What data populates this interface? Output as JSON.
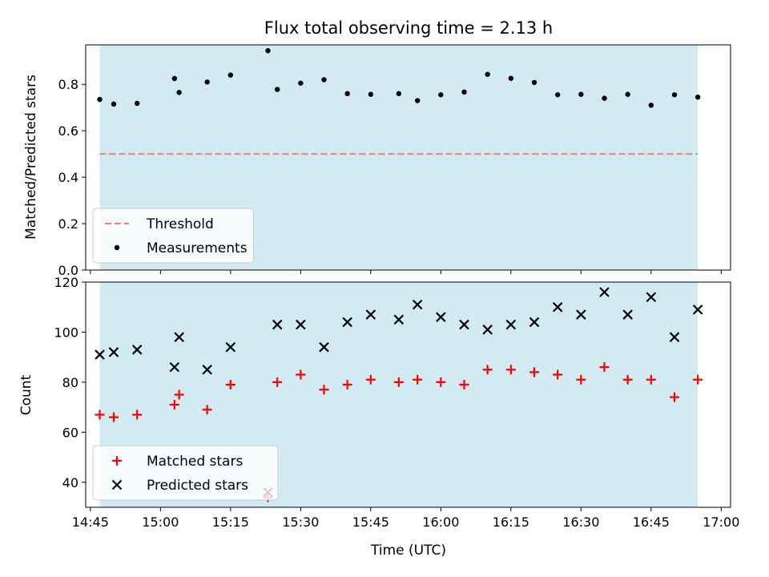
{
  "chart_data": [
    {
      "type": "scatter",
      "title": "Flux total observing time = 2.13 h",
      "xlabel": "",
      "ylabel": "Matched/Predicted stars",
      "ylim": [
        0,
        0.97
      ],
      "yticks": [
        "0.0",
        "0.2",
        "0.4",
        "0.6",
        "0.8"
      ],
      "ytick_values": [
        0,
        0.2,
        0.4,
        0.6,
        0.8
      ],
      "x_range": [
        "14:44",
        "17:02"
      ],
      "shaded_span": [
        "14:47",
        "16:55"
      ],
      "shade_color": "#add8e6",
      "threshold": {
        "name": "Threshold",
        "value": 0.5,
        "from": "14:47",
        "to": "16:55",
        "color": "#f08080"
      },
      "legend_position": "lower-left",
      "series": [
        {
          "name": "Measurements",
          "color": "#000000",
          "x": [
            "14:47",
            "14:50",
            "14:55",
            "15:03",
            "15:04",
            "15:10",
            "15:15",
            "15:23",
            "15:25",
            "15:30",
            "15:35",
            "15:40",
            "15:45",
            "15:51",
            "15:55",
            "16:00",
            "16:05",
            "16:10",
            "16:15",
            "16:20",
            "16:25",
            "16:30",
            "16:35",
            "16:40",
            "16:45",
            "16:50",
            "16:55"
          ],
          "y": [
            0.735,
            0.715,
            0.718,
            0.825,
            0.765,
            0.81,
            0.84,
            0.945,
            0.778,
            0.805,
            0.82,
            0.76,
            0.757,
            0.76,
            0.73,
            0.755,
            0.767,
            0.843,
            0.826,
            0.808,
            0.755,
            0.757,
            0.74,
            0.757,
            0.71,
            0.755,
            0.745
          ]
        }
      ]
    },
    {
      "type": "scatter",
      "title": "",
      "xlabel": "Time (UTC)",
      "ylabel": "Count",
      "ylim": [
        30,
        120
      ],
      "yticks": [
        "40",
        "60",
        "80",
        "100",
        "120"
      ],
      "ytick_values": [
        40,
        60,
        80,
        100,
        120
      ],
      "xticks": [
        "14:45",
        "15:00",
        "15:15",
        "15:30",
        "15:45",
        "16:00",
        "16:15",
        "16:30",
        "16:45",
        "17:00"
      ],
      "x_range": [
        "14:44",
        "17:02"
      ],
      "shaded_span": [
        "14:47",
        "16:55"
      ],
      "shade_color": "#add8e6",
      "legend_position": "lower-left",
      "series": [
        {
          "name": "Matched stars",
          "marker": "plus",
          "color": "#ff0000",
          "x": [
            "14:47",
            "14:50",
            "14:55",
            "15:03",
            "15:04",
            "15:10",
            "15:15",
            "15:23",
            "15:25",
            "15:30",
            "15:35",
            "15:40",
            "15:45",
            "15:51",
            "15:55",
            "16:00",
            "16:05",
            "16:10",
            "16:15",
            "16:20",
            "16:25",
            "16:30",
            "16:35",
            "16:40",
            "16:45",
            "16:50",
            "16:55"
          ],
          "y": [
            67,
            66,
            67,
            71,
            75,
            69,
            79,
            34,
            80,
            83,
            77,
            79,
            81,
            80,
            81,
            80,
            79,
            85,
            85,
            84,
            83,
            81,
            86,
            81,
            81,
            74,
            81
          ]
        },
        {
          "name": "Predicted stars",
          "marker": "x",
          "color": "#000000",
          "x": [
            "14:47",
            "14:50",
            "14:55",
            "15:03",
            "15:04",
            "15:10",
            "15:15",
            "15:23",
            "15:25",
            "15:30",
            "15:35",
            "15:40",
            "15:45",
            "15:51",
            "15:55",
            "16:00",
            "16:05",
            "16:10",
            "16:15",
            "16:20",
            "16:25",
            "16:30",
            "16:35",
            "16:40",
            "16:45",
            "16:50",
            "16:55"
          ],
          "y": [
            91,
            92,
            93,
            86,
            98,
            85,
            94,
            36,
            103,
            103,
            94,
            104,
            107,
            105,
            111,
            106,
            103,
            101,
            103,
            104,
            110,
            107,
            116,
            107,
            114,
            98,
            109
          ]
        }
      ]
    }
  ]
}
